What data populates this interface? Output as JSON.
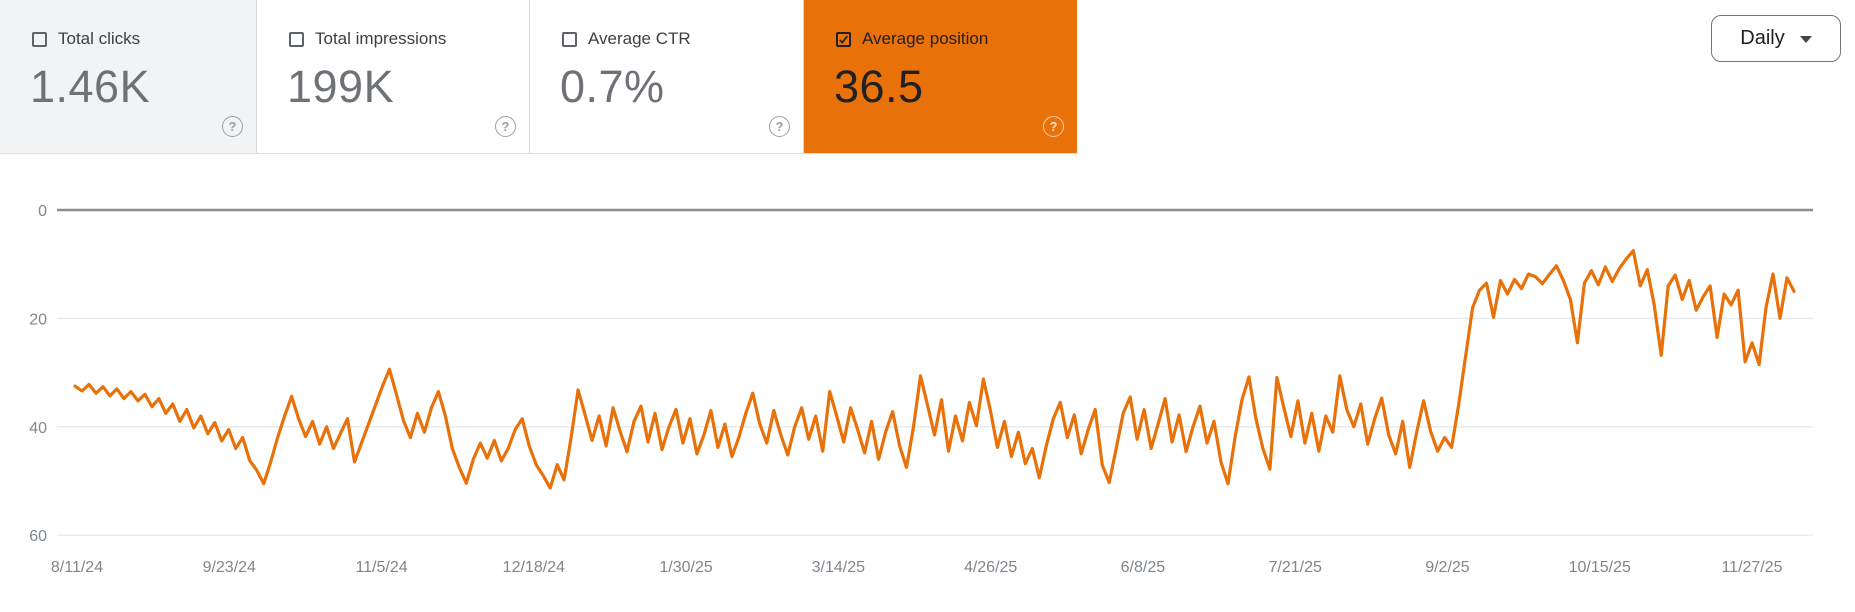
{
  "cards": [
    {
      "label": "Total clicks",
      "value": "1.46K",
      "checked": false
    },
    {
      "label": "Total impressions",
      "value": "199K",
      "checked": false
    },
    {
      "label": "Average CTR",
      "value": "0.7%",
      "checked": false
    },
    {
      "label": "Average position",
      "value": "36.5",
      "checked": true
    }
  ],
  "help_icon_glyph": "?",
  "granularity_dropdown": {
    "selected": "Daily"
  },
  "colors": {
    "accent_orange": "#e8710a",
    "selected_card_bg": "#e8710a",
    "first_card_bg": "#f1f3f4",
    "divider": "#dadce0",
    "axis_label": "#80868b",
    "gridline": "#e8eaed",
    "zero_line": "#8a8f94",
    "card_value_text": "#6e7277",
    "card_label_text": "#3c4043",
    "selected_card_text": "#202124"
  },
  "chart_data": {
    "type": "line",
    "grid": true,
    "legend": "none",
    "y_axis_inverted": true,
    "y_ticks": [
      0,
      20,
      40,
      60
    ],
    "y_range": [
      0,
      60
    ],
    "x_tick_labels": [
      "8/11/24",
      "9/23/24",
      "11/5/24",
      "12/18/24",
      "1/30/25",
      "3/14/25",
      "4/26/25",
      "6/8/25",
      "7/21/25",
      "9/2/25",
      "10/15/25",
      "11/27/25"
    ],
    "series": [
      {
        "name": "Average position",
        "color": "#e8710a",
        "values": [
          32.5,
          33.4,
          32.2,
          33.8,
          32.6,
          34.3,
          33.0,
          34.8,
          33.5,
          35.2,
          34.0,
          36.3,
          34.8,
          37.5,
          35.8,
          39.0,
          36.8,
          40.2,
          38.0,
          41.3,
          39.2,
          42.6,
          40.5,
          44.0,
          42.0,
          46.2,
          48.0,
          50.5,
          46.5,
          42.0,
          38.0,
          34.4,
          38.5,
          41.8,
          39.0,
          43.2,
          40.0,
          44.0,
          41.2,
          38.5,
          46.5,
          43.0,
          39.5,
          36.0,
          32.5,
          29.4,
          34.0,
          38.8,
          42.0,
          37.5,
          41.0,
          36.5,
          33.5,
          38.0,
          44.0,
          47.5,
          50.4,
          46.0,
          43.0,
          45.8,
          42.5,
          46.3,
          44.0,
          40.5,
          38.5,
          43.5,
          47.0,
          49.0,
          51.3,
          47.0,
          49.8,
          42.0,
          33.2,
          37.8,
          42.5,
          38.0,
          43.5,
          36.5,
          40.8,
          44.6,
          39.0,
          36.2,
          42.8,
          37.5,
          44.2,
          40.0,
          36.8,
          43.0,
          38.5,
          45.0,
          41.5,
          37.0,
          43.8,
          39.5,
          45.5,
          42.0,
          37.5,
          33.8,
          39.5,
          43.0,
          37.0,
          41.5,
          45.2,
          40.0,
          36.5,
          42.3,
          38.0,
          44.5,
          33.5,
          38.0,
          42.8,
          36.5,
          40.5,
          44.8,
          39.0,
          46.0,
          41.0,
          37.2,
          43.5,
          47.5,
          40.0,
          30.6,
          36.0,
          41.5,
          35.0,
          44.5,
          38.0,
          42.6,
          35.5,
          39.8,
          31.2,
          37.0,
          43.8,
          39.0,
          45.5,
          41.0,
          46.8,
          44.0,
          49.4,
          43.5,
          38.5,
          35.5,
          42.0,
          37.8,
          45.0,
          40.5,
          36.8,
          47.0,
          50.3,
          44.0,
          37.5,
          34.5,
          42.3,
          36.8,
          44.0,
          39.5,
          34.8,
          42.8,
          37.8,
          44.6,
          40.0,
          36.2,
          43.0,
          39.0,
          46.5,
          50.5,
          42.0,
          35.0,
          30.8,
          38.5,
          44.0,
          47.8,
          30.9,
          36.5,
          41.8,
          35.2,
          43.0,
          37.5,
          44.5,
          38.0,
          41.0,
          30.6,
          36.8,
          40.0,
          35.8,
          43.2,
          38.5,
          34.7,
          41.5,
          45.0,
          39.0,
          47.5,
          41.0,
          35.2,
          40.8,
          44.5,
          42.0,
          43.8,
          36.0,
          27.0,
          18.0,
          14.8,
          13.5,
          19.8,
          13.0,
          15.5,
          12.8,
          14.5,
          11.8,
          12.3,
          13.6,
          11.9,
          10.3,
          13.0,
          16.5,
          24.5,
          13.5,
          11.2,
          13.8,
          10.5,
          13.2,
          10.8,
          9.0,
          7.5,
          14.0,
          11.0,
          17.5,
          26.8,
          14.0,
          12.0,
          16.5,
          13.0,
          18.5,
          16.0,
          14.0,
          23.5,
          15.5,
          17.5,
          14.8,
          28.0,
          24.5,
          28.5,
          18.0,
          11.8,
          20.0,
          12.5,
          15.0
        ]
      }
    ]
  }
}
